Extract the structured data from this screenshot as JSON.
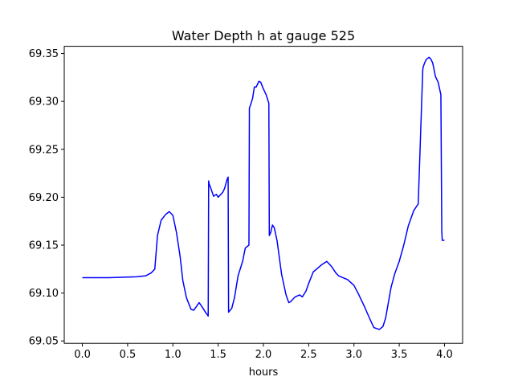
{
  "chart_data": {
    "type": "line",
    "title": "Water Depth h at gauge 525",
    "xlabel": "hours",
    "ylabel": "",
    "xlim": [
      -0.2,
      4.2
    ],
    "ylim": [
      69.0475,
      69.3575
    ],
    "xticks": [
      0.0,
      0.5,
      1.0,
      1.5,
      2.0,
      2.5,
      3.0,
      3.5,
      4.0
    ],
    "xtick_labels": [
      "0.0",
      "0.5",
      "1.0",
      "1.5",
      "2.0",
      "2.5",
      "3.0",
      "3.5",
      "4.0"
    ],
    "yticks": [
      69.05,
      69.1,
      69.15,
      69.2,
      69.25,
      69.3,
      69.35
    ],
    "ytick_labels": [
      "69.05",
      "69.10",
      "69.15",
      "69.20",
      "69.25",
      "69.30",
      "69.35"
    ],
    "grid": false,
    "series": [
      {
        "color": "#0000ff",
        "x": [
          0.0,
          0.3,
          0.6,
          0.7,
          0.76,
          0.8,
          0.83,
          0.87,
          0.92,
          0.96,
          1.0,
          1.04,
          1.08,
          1.11,
          1.15,
          1.2,
          1.23,
          1.26,
          1.29,
          1.32,
          1.36,
          1.39,
          1.395,
          1.4,
          1.42,
          1.45,
          1.48,
          1.5,
          1.53,
          1.55,
          1.57,
          1.6,
          1.61,
          1.615,
          1.65,
          1.68,
          1.72,
          1.77,
          1.8,
          1.84,
          1.845,
          1.86,
          1.88,
          1.9,
          1.92,
          1.95,
          1.97,
          2.0,
          2.03,
          2.06,
          2.065,
          2.08,
          2.1,
          2.12,
          2.15,
          2.2,
          2.25,
          2.28,
          2.3,
          2.35,
          2.4,
          2.43,
          2.47,
          2.5,
          2.55,
          2.6,
          2.65,
          2.7,
          2.75,
          2.8,
          2.83,
          2.88,
          2.93,
          3.0,
          3.05,
          3.12,
          3.18,
          3.22,
          3.28,
          3.32,
          3.35,
          3.38,
          3.41,
          3.45,
          3.5,
          3.55,
          3.6,
          3.66,
          3.71,
          3.76,
          3.765,
          3.78,
          3.8,
          3.83,
          3.85,
          3.87,
          3.9,
          3.93,
          3.96,
          3.97,
          3.975,
          3.98,
          4.0
        ],
        "y": [
          69.116,
          69.116,
          69.117,
          69.118,
          69.121,
          69.125,
          69.16,
          69.176,
          69.182,
          69.185,
          69.181,
          69.163,
          69.138,
          69.113,
          69.095,
          69.083,
          69.082,
          69.086,
          69.09,
          69.086,
          69.08,
          69.076,
          69.217,
          69.214,
          69.209,
          69.201,
          69.203,
          69.2,
          69.203,
          69.205,
          69.209,
          69.219,
          69.221,
          69.08,
          69.084,
          69.095,
          69.118,
          69.133,
          69.147,
          69.15,
          69.293,
          69.297,
          69.303,
          69.315,
          69.315,
          69.321,
          69.32,
          69.313,
          69.307,
          69.298,
          69.16,
          69.163,
          69.171,
          69.168,
          69.155,
          69.12,
          69.098,
          69.09,
          69.091,
          69.096,
          69.098,
          69.096,
          69.102,
          69.11,
          69.122,
          69.126,
          69.13,
          69.133,
          69.128,
          69.121,
          69.118,
          69.116,
          69.114,
          69.108,
          69.099,
          69.085,
          69.072,
          69.064,
          69.062,
          69.065,
          69.074,
          69.09,
          69.106,
          69.12,
          69.133,
          69.15,
          69.17,
          69.186,
          69.193,
          69.333,
          69.336,
          69.34,
          69.344,
          69.346,
          69.344,
          69.34,
          69.326,
          69.32,
          69.307,
          69.165,
          69.155,
          69.155,
          69.155
        ]
      }
    ]
  }
}
